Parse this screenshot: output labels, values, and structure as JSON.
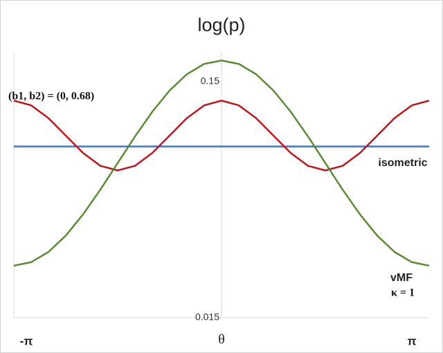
{
  "chart_data": {
    "type": "line",
    "title": "log(p)",
    "xlabel": "θ",
    "x": [
      -3.1416,
      -2.8798,
      -2.618,
      -2.3562,
      -2.0944,
      -1.8326,
      -1.5708,
      -1.309,
      -1.0472,
      -0.7854,
      -0.5236,
      -0.2618,
      0,
      0.2618,
      0.5236,
      0.7854,
      1.0472,
      1.309,
      1.5708,
      1.8326,
      2.0944,
      2.3562,
      2.618,
      2.8798,
      3.1416
    ],
    "series": [
      {
        "name": "isometric",
        "color": "#4472c4",
        "values": [
          0.0796,
          0.0796,
          0.0796,
          0.0796,
          0.0796,
          0.0796,
          0.0796,
          0.0796,
          0.0796,
          0.0796,
          0.0796,
          0.0796,
          0.0796,
          0.0796,
          0.0796,
          0.0796,
          0.0796,
          0.0796,
          0.0796,
          0.0796,
          0.0796,
          0.0796,
          0.0796,
          0.0796,
          0.0796
        ]
      },
      {
        "name": "(b1, b2) = (0, 0.68)",
        "color": "#c0141c",
        "values": [
          0.1244,
          0.1188,
          0.1049,
          0.0885,
          0.0747,
          0.0659,
          0.063,
          0.0659,
          0.0747,
          0.0885,
          0.1049,
          0.1188,
          0.1244,
          0.1188,
          0.1049,
          0.0885,
          0.0747,
          0.0659,
          0.063,
          0.0659,
          0.0747,
          0.0885,
          0.1049,
          0.1188,
          0.1244
        ]
      },
      {
        "name": "vMF",
        "color": "#5a8a32",
        "values": [
          0.0249,
          0.02577,
          0.02847,
          0.03338,
          0.04106,
          0.05226,
          0.0677,
          0.0877,
          0.1116,
          0.1373,
          0.1609,
          0.1779,
          0.184,
          0.1779,
          0.1609,
          0.1373,
          0.1116,
          0.0877,
          0.0677,
          0.05226,
          0.04106,
          0.03338,
          0.02847,
          0.02577,
          0.0249
        ]
      }
    ],
    "annotation": "κ = 1",
    "xlim": [
      -3.1416,
      3.1416
    ],
    "xticks": [
      {
        "value": -3.1416,
        "label": "-π"
      },
      {
        "value": 3.1416,
        "label": "π"
      }
    ],
    "ylim": [
      0.015,
      0.2
    ],
    "yticks": [
      0.015,
      0.15
    ],
    "log_y": true
  }
}
